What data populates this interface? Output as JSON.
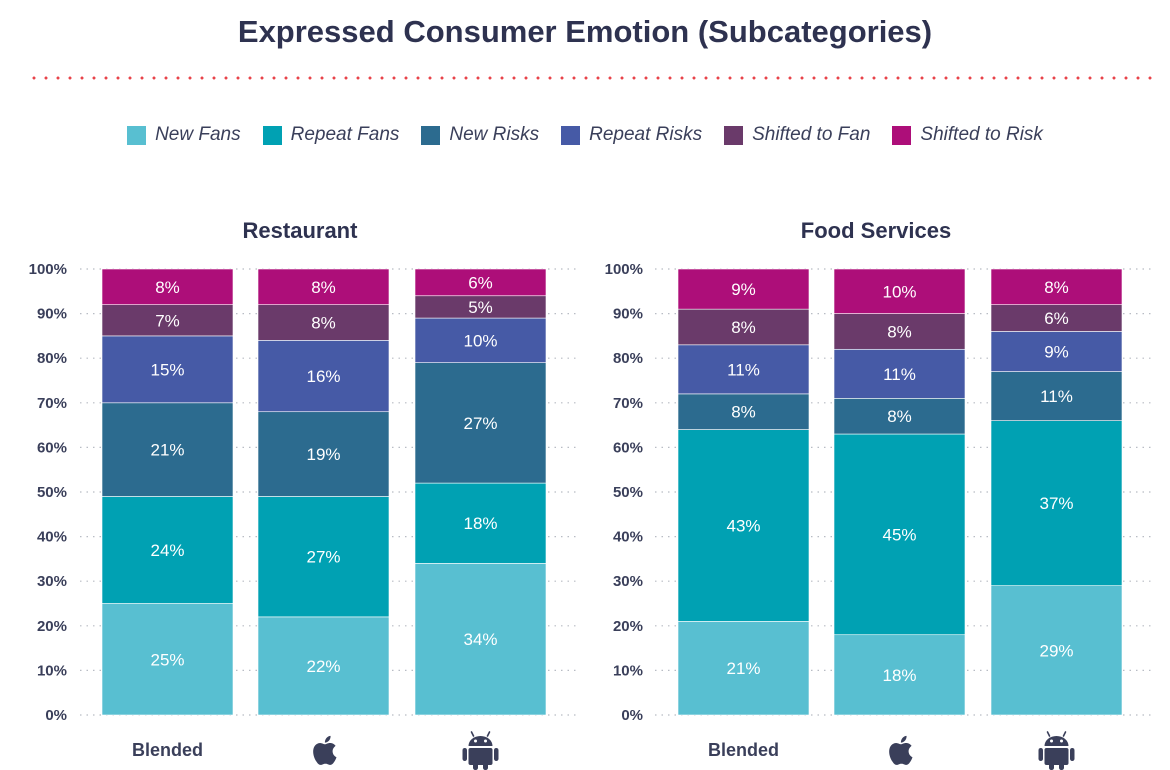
{
  "title": "Expressed Consumer Emotion (Subcategories)",
  "colors": {
    "New Fans": "#58bfd1",
    "Repeat Fans": "#00a1b3",
    "New Risks": "#2c6b8f",
    "Repeat Risks": "#465aa6",
    "Shifted to Fan": "#6a3a6a",
    "Shifted to Risk": "#ad0e79",
    "title": "#2e3250",
    "divider": "#e8434a",
    "axis_text": "#3a3f5a"
  },
  "legend": [
    "New Fans",
    "Repeat Fans",
    "New Risks",
    "Repeat Risks",
    "Shifted to Fan",
    "Shifted to Risk"
  ],
  "chart_data": [
    {
      "type": "bar",
      "stacked": true,
      "title": "Restaurant",
      "categories": [
        "Blended",
        "apple-icon",
        "android-icon"
      ],
      "yticks": [
        "0%",
        "10%",
        "20%",
        "30%",
        "40%",
        "50%",
        "60%",
        "70%",
        "80%",
        "90%",
        "100%"
      ],
      "ylim": [
        0,
        100
      ],
      "grid": true,
      "series": [
        {
          "name": "New Fans",
          "values": [
            25,
            22,
            34
          ]
        },
        {
          "name": "Repeat Fans",
          "values": [
            24,
            27,
            18
          ]
        },
        {
          "name": "New Risks",
          "values": [
            21,
            19,
            27
          ]
        },
        {
          "name": "Repeat Risks",
          "values": [
            15,
            16,
            10
          ]
        },
        {
          "name": "Shifted to Fan",
          "values": [
            7,
            8,
            5
          ]
        },
        {
          "name": "Shifted to Risk",
          "values": [
            8,
            8,
            6
          ]
        }
      ]
    },
    {
      "type": "bar",
      "stacked": true,
      "title": "Food Services",
      "categories": [
        "Blended",
        "apple-icon",
        "android-icon"
      ],
      "yticks": [
        "0%",
        "10%",
        "20%",
        "30%",
        "40%",
        "50%",
        "60%",
        "70%",
        "80%",
        "90%",
        "100%"
      ],
      "ylim": [
        0,
        100
      ],
      "grid": true,
      "series": [
        {
          "name": "New Fans",
          "values": [
            21,
            18,
            29
          ]
        },
        {
          "name": "Repeat Fans",
          "values": [
            43,
            45,
            37
          ]
        },
        {
          "name": "New Risks",
          "values": [
            8,
            8,
            11
          ]
        },
        {
          "name": "Repeat Risks",
          "values": [
            11,
            11,
            9
          ]
        },
        {
          "name": "Shifted to Fan",
          "values": [
            8,
            8,
            6
          ]
        },
        {
          "name": "Shifted to Risk",
          "values": [
            9,
            10,
            8
          ]
        }
      ]
    }
  ]
}
